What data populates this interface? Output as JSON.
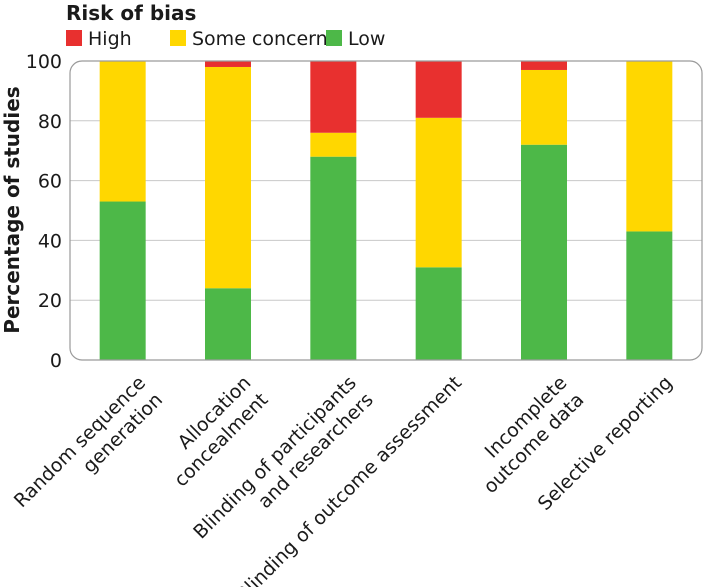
{
  "chart_data": {
    "type": "bar",
    "stacked": true,
    "legend_title": "Risk of bias",
    "legend_position": "top-left",
    "ylabel": "Percentage of studies",
    "xlabel": "",
    "ylim": [
      0,
      100
    ],
    "yticks": [
      "0",
      "20",
      "40",
      "60",
      "80",
      "100"
    ],
    "grid": true,
    "categories": [
      [
        "Random sequence",
        "generation"
      ],
      [
        "Allocation",
        "concealment"
      ],
      [
        "Blinding of participants",
        "and researchers"
      ],
      [
        "Blinding of outcome assessment"
      ],
      [
        "Incomplete",
        "outcome data"
      ],
      [
        "Selective reporting"
      ]
    ],
    "series": [
      {
        "name": "Low",
        "color": "#4db848",
        "values": [
          53,
          24,
          68,
          31,
          72,
          43
        ]
      },
      {
        "name": "Some concerns",
        "color": "#ffd700",
        "values": [
          47,
          74,
          8,
          50,
          25,
          57
        ]
      },
      {
        "name": "High",
        "color": "#e8302f",
        "values": [
          0,
          2,
          24,
          19,
          3,
          0
        ]
      }
    ],
    "legend_order": [
      "High",
      "Some concerns",
      "Low"
    ]
  }
}
